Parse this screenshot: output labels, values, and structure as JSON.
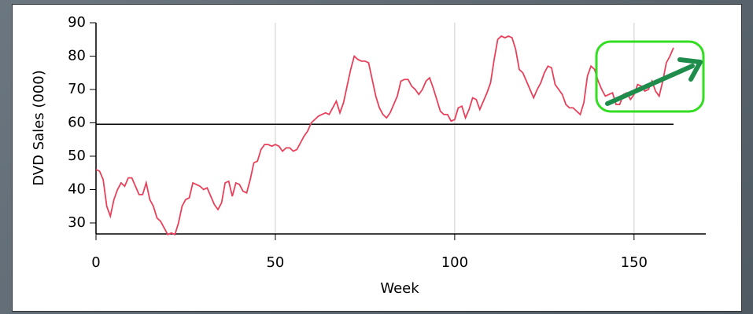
{
  "chart_data": {
    "type": "line",
    "xlabel": "Week",
    "ylabel": "DVD Sales (000)",
    "x": [
      0,
      1,
      2,
      3,
      4,
      5,
      6,
      7,
      8,
      9,
      10,
      11,
      12,
      13,
      14,
      15,
      16,
      17,
      18,
      19,
      20,
      21,
      22,
      23,
      24,
      25,
      26,
      27,
      28,
      29,
      30,
      31,
      32,
      33,
      34,
      35,
      36,
      37,
      38,
      39,
      40,
      41,
      42,
      43,
      44,
      45,
      46,
      47,
      48,
      49,
      50,
      51,
      52,
      53,
      54,
      55,
      56,
      57,
      58,
      59,
      60,
      61,
      62,
      63,
      64,
      65,
      66,
      67,
      68,
      69,
      70,
      71,
      72,
      73,
      74,
      75,
      76,
      77,
      78,
      79,
      80,
      81,
      82,
      83,
      84,
      85,
      86,
      87,
      88,
      89,
      90,
      91,
      92,
      93,
      94,
      95,
      96,
      97,
      98,
      99,
      100,
      101,
      102,
      103,
      104,
      105,
      106,
      107,
      108,
      109,
      110,
      111,
      112,
      113,
      114,
      115,
      116,
      117,
      118,
      119,
      120,
      121,
      122,
      123,
      124,
      125,
      126,
      127,
      128,
      129,
      130,
      131,
      132,
      133,
      134,
      135,
      136,
      137,
      138,
      139,
      140,
      141,
      142,
      143,
      144,
      145,
      146,
      147,
      148,
      149,
      150,
      151,
      152,
      153,
      154,
      155,
      156,
      157,
      158,
      159,
      160,
      161
    ],
    "values": [
      46,
      45.5,
      43,
      35,
      32,
      37,
      40,
      42,
      41,
      43.5,
      43.5,
      41,
      38.5,
      38.5,
      42,
      37,
      35,
      31.5,
      30.5,
      28.5,
      26.5,
      27,
      26.5,
      30,
      35,
      37,
      37.5,
      42,
      41.5,
      41,
      40,
      40.5,
      38,
      35.5,
      34,
      36,
      42,
      42.5,
      38,
      42,
      41.5,
      39.5,
      39,
      43,
      48,
      48.5,
      52,
      53.5,
      53.5,
      53,
      53.5,
      53,
      51.5,
      52.5,
      52.5,
      51.5,
      52,
      54,
      56,
      57.5,
      60,
      61,
      62,
      62.5,
      63,
      62.5,
      64.5,
      66.5,
      63,
      66,
      71,
      76,
      80,
      79,
      78.5,
      78.5,
      78,
      73,
      68,
      64.5,
      62.5,
      61.5,
      63,
      65.5,
      68,
      72.5,
      73,
      73,
      71,
      70,
      68.5,
      70,
      72.5,
      73.5,
      70.5,
      67,
      63.5,
      62.5,
      62.5,
      60.5,
      61,
      64.5,
      65,
      61.5,
      64,
      67.5,
      67,
      64,
      66.5,
      69,
      72,
      79,
      85,
      86,
      85.5,
      86,
      85.5,
      82,
      76,
      75,
      72.5,
      70,
      67.5,
      70,
      72,
      75,
      77,
      76.5,
      71.5,
      70,
      68.5,
      65.5,
      64.5,
      64.5,
      63.5,
      62.5,
      66,
      74,
      77,
      76,
      72.5,
      70,
      68,
      68.5,
      69,
      65.5,
      65.5,
      68.5,
      69,
      67,
      68.5,
      71.5,
      71,
      69.5,
      70,
      72.5,
      69.5,
      68,
      72.5,
      78,
      80,
      82.5
    ],
    "color": "#e8405a",
    "hline": {
      "y": 59.6,
      "xlim": [
        0,
        161
      ],
      "color": "#000000"
    },
    "xlim": [
      0,
      170
    ],
    "xticks": [
      0,
      50,
      100,
      150
    ],
    "ylim": [
      26.7,
      90
    ],
    "yticks": [
      30,
      40,
      50,
      60,
      70,
      80,
      90
    ],
    "grid": "x"
  }
}
